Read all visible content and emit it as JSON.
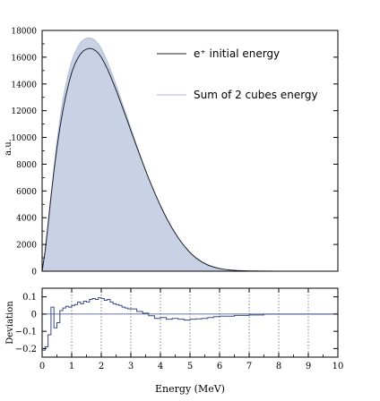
{
  "colors": {
    "fill": "#c9d2e4",
    "fill_edge": "#a9b8d6",
    "line": "#1e2230",
    "deviation": "#3a4a86",
    "frame": "#000000",
    "grid": "#555555"
  },
  "chart_data": [
    {
      "type": "area",
      "ylabel": "a.u.",
      "ylim": [
        0,
        18000
      ],
      "xlim": [
        0,
        10
      ],
      "yticks": [
        0,
        2000,
        4000,
        6000,
        8000,
        10000,
        12000,
        14000,
        16000,
        18000
      ],
      "yticklabels": [
        "0",
        "2000",
        "4000",
        "6000",
        "8000",
        "10000",
        "12000",
        "14000",
        "16000",
        "18000"
      ],
      "legend_position": "top-right",
      "series": [
        {
          "name": "e⁺ initial energy",
          "style": "line",
          "x": [
            0,
            0.1,
            0.2,
            0.3,
            0.4,
            0.5,
            0.6,
            0.7,
            0.8,
            0.9,
            1.0,
            1.1,
            1.2,
            1.3,
            1.4,
            1.5,
            1.6,
            1.7,
            1.8,
            1.9,
            2.0,
            2.1,
            2.2,
            2.3,
            2.4,
            2.5,
            2.6,
            2.7,
            2.8,
            2.9,
            3.0,
            3.2,
            3.4,
            3.6,
            3.8,
            4.0,
            4.2,
            4.4,
            4.6,
            4.8,
            5.0,
            5.2,
            5.4,
            5.6,
            5.8,
            6.0,
            6.2,
            6.4,
            6.6,
            6.8,
            7.0,
            7.5,
            8.0,
            9.0,
            10.0
          ],
          "values": [
            0,
            1500,
            3500,
            5600,
            7500,
            9200,
            10700,
            12000,
            13100,
            14050,
            14850,
            15450,
            15900,
            16250,
            16480,
            16600,
            16650,
            16620,
            16500,
            16300,
            16000,
            15600,
            15150,
            14650,
            14100,
            13550,
            12950,
            12350,
            11750,
            11150,
            10500,
            9300,
            8100,
            6950,
            5900,
            4900,
            4000,
            3200,
            2500,
            1900,
            1400,
            1000,
            700,
            470,
            310,
            200,
            130,
            80,
            50,
            30,
            18,
            8,
            3,
            0.5,
            0
          ]
        },
        {
          "name": "Sum of 2 cubes energy",
          "style": "filled",
          "x": [
            0,
            0.1,
            0.2,
            0.3,
            0.4,
            0.5,
            0.6,
            0.7,
            0.8,
            0.9,
            1.0,
            1.1,
            1.2,
            1.3,
            1.4,
            1.5,
            1.6,
            1.7,
            1.8,
            1.9,
            2.0,
            2.1,
            2.2,
            2.3,
            2.4,
            2.5,
            2.6,
            2.7,
            2.8,
            2.9,
            3.0,
            3.2,
            3.4,
            3.6,
            3.8,
            4.0,
            4.2,
            4.4,
            4.6,
            4.8,
            5.0,
            5.2,
            5.4,
            5.6,
            5.8,
            6.0,
            6.2,
            6.4,
            6.6,
            6.8,
            7.0,
            7.5,
            8.0,
            9.0,
            10.0
          ],
          "values": [
            0,
            1200,
            3000,
            5400,
            7700,
            9700,
            11400,
            12800,
            13950,
            14900,
            15700,
            16300,
            16750,
            17100,
            17300,
            17420,
            17450,
            17400,
            17250,
            17000,
            16650,
            16200,
            15700,
            15150,
            14550,
            13950,
            13300,
            12650,
            12000,
            11350,
            10700,
            9400,
            8150,
            6950,
            5850,
            4850,
            3950,
            3150,
            2450,
            1850,
            1350,
            950,
            660,
            440,
            290,
            185,
            120,
            74,
            46,
            28,
            17,
            7,
            3,
            0.5,
            0
          ]
        }
      ]
    },
    {
      "type": "line",
      "xlabel": "Energy (MeV)",
      "ylabel": "Deviation",
      "xlim": [
        0,
        10
      ],
      "ylim": [
        -0.25,
        0.15
      ],
      "xticks": [
        0,
        1,
        2,
        3,
        4,
        5,
        6,
        7,
        8,
        9,
        10
      ],
      "xticklabels": [
        "0",
        "1",
        "2",
        "3",
        "4",
        "5",
        "6",
        "7",
        "8",
        "9",
        "10"
      ],
      "yticks": [
        0.1,
        0,
        -0.1,
        -0.2
      ],
      "yticklabels": [
        "0.1",
        "0",
        "−0.1",
        "−0.2"
      ],
      "grid": "vertical dotted",
      "series": [
        {
          "style": "step",
          "x": [
            0,
            0.1,
            0.2,
            0.3,
            0.4,
            0.5,
            0.6,
            0.7,
            0.8,
            0.9,
            1.0,
            1.1,
            1.2,
            1.3,
            1.4,
            1.5,
            1.6,
            1.7,
            1.8,
            1.9,
            2.0,
            2.1,
            2.2,
            2.3,
            2.4,
            2.5,
            2.6,
            2.7,
            2.8,
            2.9,
            3.0,
            3.2,
            3.4,
            3.6,
            3.8,
            4.0,
            4.2,
            4.4,
            4.6,
            4.8,
            5.0,
            5.2,
            5.4,
            5.6,
            5.8,
            6.0,
            6.5,
            7.0,
            7.5,
            8.0,
            8.5,
            9.0,
            9.5
          ],
          "values": [
            -0.21,
            -0.19,
            -0.12,
            0.04,
            -0.08,
            -0.05,
            0.02,
            0.035,
            0.045,
            0.04,
            0.05,
            0.055,
            0.07,
            0.06,
            0.075,
            0.07,
            0.085,
            0.09,
            0.085,
            0.095,
            0.09,
            0.08,
            0.085,
            0.07,
            0.06,
            0.055,
            0.05,
            0.04,
            0.035,
            0.03,
            0.03,
            0.015,
            0.005,
            -0.01,
            -0.025,
            -0.02,
            -0.03,
            -0.025,
            -0.03,
            -0.035,
            -0.03,
            -0.028,
            -0.025,
            -0.02,
            -0.015,
            -0.012,
            -0.008,
            -0.005,
            0,
            0,
            0,
            0,
            0
          ]
        }
      ]
    }
  ]
}
